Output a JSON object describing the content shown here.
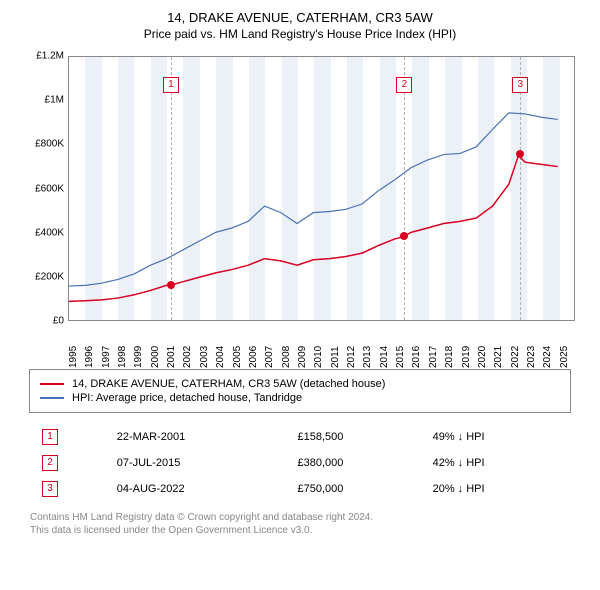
{
  "title": "14, DRAKE AVENUE, CATERHAM, CR3 5AW",
  "subtitle": "Price paid vs. HM Land Registry's House Price Index (HPI)",
  "chart": {
    "type": "line",
    "background_color": "#ffffff",
    "grid_shade_color": "rgba(200,215,235,0.35)",
    "border_color": "#888888",
    "xlim_years": [
      1995,
      2026
    ],
    "ylim": [
      0,
      1200000
    ],
    "yticks": [
      {
        "v": 0,
        "label": "£0"
      },
      {
        "v": 200000,
        "label": "£200K"
      },
      {
        "v": 400000,
        "label": "£400K"
      },
      {
        "v": 600000,
        "label": "£600K"
      },
      {
        "v": 800000,
        "label": "£800K"
      },
      {
        "v": 1000000,
        "label": "£1M"
      },
      {
        "v": 1200000,
        "label": "£1.2M"
      }
    ],
    "xticks_years": [
      1995,
      1996,
      1997,
      1998,
      1999,
      2000,
      2001,
      2002,
      2003,
      2004,
      2005,
      2006,
      2007,
      2008,
      2009,
      2010,
      2011,
      2012,
      2013,
      2014,
      2015,
      2016,
      2017,
      2018,
      2019,
      2020,
      2021,
      2022,
      2023,
      2024,
      2025
    ],
    "series": [
      {
        "id": "price_paid",
        "label": "14, DRAKE AVENUE, CATERHAM, CR3 5AW (detached house)",
        "color": "#d70022",
        "width": 1.5,
        "points_year_value": [
          [
            1995,
            85000
          ],
          [
            1996,
            88000
          ],
          [
            1997,
            92000
          ],
          [
            1998,
            100000
          ],
          [
            1999,
            115000
          ],
          [
            2000,
            135000
          ],
          [
            2001,
            158500
          ],
          [
            2001.23,
            158500
          ],
          [
            2002,
            175000
          ],
          [
            2003,
            195000
          ],
          [
            2004,
            215000
          ],
          [
            2005,
            230000
          ],
          [
            2006,
            250000
          ],
          [
            2007,
            280000
          ],
          [
            2008,
            270000
          ],
          [
            2009,
            250000
          ],
          [
            2010,
            275000
          ],
          [
            2011,
            280000
          ],
          [
            2012,
            290000
          ],
          [
            2013,
            305000
          ],
          [
            2014,
            340000
          ],
          [
            2015,
            370000
          ],
          [
            2015.51,
            380000
          ],
          [
            2016,
            400000
          ],
          [
            2017,
            420000
          ],
          [
            2018,
            440000
          ],
          [
            2019,
            450000
          ],
          [
            2020,
            465000
          ],
          [
            2021,
            520000
          ],
          [
            2022,
            620000
          ],
          [
            2022.59,
            750000
          ],
          [
            2023,
            720000
          ],
          [
            2024,
            710000
          ],
          [
            2025,
            700000
          ]
        ]
      },
      {
        "id": "hpi",
        "label": "HPI: Average price, detached house, Tandridge",
        "color": "#4a72b8",
        "width": 1.2,
        "points_year_value": [
          [
            1995,
            155000
          ],
          [
            1996,
            158000
          ],
          [
            1997,
            168000
          ],
          [
            1998,
            185000
          ],
          [
            1999,
            210000
          ],
          [
            2000,
            250000
          ],
          [
            2001,
            280000
          ],
          [
            2002,
            320000
          ],
          [
            2003,
            360000
          ],
          [
            2004,
            400000
          ],
          [
            2005,
            420000
          ],
          [
            2006,
            450000
          ],
          [
            2007,
            520000
          ],
          [
            2008,
            490000
          ],
          [
            2009,
            440000
          ],
          [
            2010,
            490000
          ],
          [
            2011,
            495000
          ],
          [
            2012,
            505000
          ],
          [
            2013,
            530000
          ],
          [
            2014,
            590000
          ],
          [
            2015,
            640000
          ],
          [
            2016,
            695000
          ],
          [
            2017,
            730000
          ],
          [
            2018,
            755000
          ],
          [
            2019,
            760000
          ],
          [
            2020,
            790000
          ],
          [
            2021,
            870000
          ],
          [
            2022,
            945000
          ],
          [
            2023,
            940000
          ],
          [
            2024,
            925000
          ],
          [
            2025,
            915000
          ]
        ]
      }
    ],
    "events": [
      {
        "n": "1",
        "year": 2001.23,
        "value": 158500,
        "color": "#d70022",
        "date": "22-MAR-2001",
        "price": "£158,500",
        "delta": "49% ↓ HPI"
      },
      {
        "n": "2",
        "year": 2015.51,
        "value": 380000,
        "color": "#d70022",
        "date": "07-JUL-2015",
        "price": "£380,000",
        "delta": "42% ↓ HPI"
      },
      {
        "n": "3",
        "year": 2022.59,
        "value": 750000,
        "color": "#d70022",
        "date": "04-AUG-2022",
        "price": "£750,000",
        "delta": "20% ↓ HPI"
      }
    ]
  },
  "legend_header_colors": {
    "price_paid": "#d70022",
    "hpi": "#4a72b8"
  },
  "footer_line1": "Contains HM Land Registry data © Crown copyright and database right 2024.",
  "footer_line2": "This data is licensed under the Open Government Licence v3.0."
}
